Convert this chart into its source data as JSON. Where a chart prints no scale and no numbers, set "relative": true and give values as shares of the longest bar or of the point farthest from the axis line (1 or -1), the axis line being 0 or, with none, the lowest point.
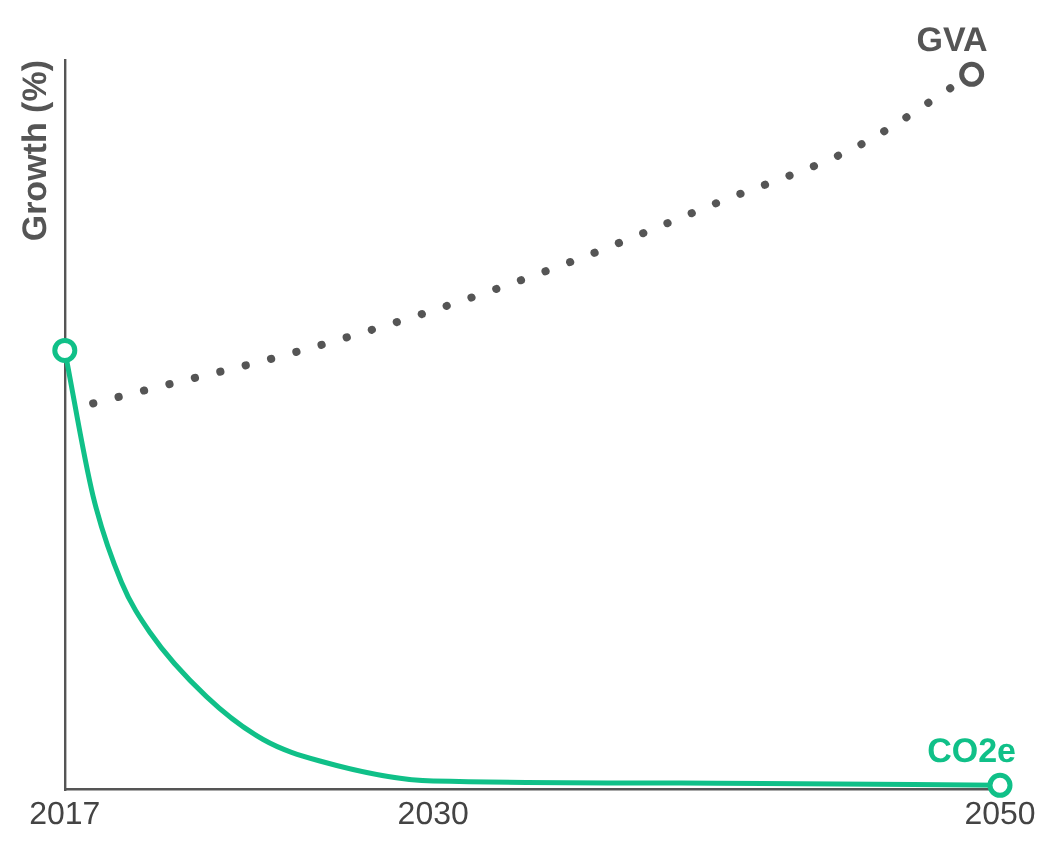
{
  "chart_data": {
    "type": "line",
    "ylabel": "Growth (%)",
    "relative": true,
    "xlim": [
      2017,
      2050
    ],
    "xticks": [
      2017,
      2030,
      2050
    ],
    "tick_labels": "x",
    "grid": false,
    "legend": false,
    "series": [
      {
        "name": "GVA",
        "color": "#555555",
        "line_style": "dotted",
        "x": [
          2018,
          2020,
          2025,
          2030,
          2035,
          2040,
          2045,
          2049
        ],
        "values": [
          0.54,
          0.56,
          0.61,
          0.67,
          0.74,
          0.82,
          0.9,
          1.0
        ]
      },
      {
        "name": "CO2e",
        "color": "#10c088",
        "line_style": "solid",
        "x": [
          2017,
          2018,
          2019,
          2020,
          2022,
          2024,
          2026,
          2030,
          2040,
          2050
        ],
        "values": [
          0.614,
          0.41,
          0.29,
          0.22,
          0.13,
          0.07,
          0.04,
          0.012,
          0.009,
          0.006
        ]
      }
    ]
  }
}
